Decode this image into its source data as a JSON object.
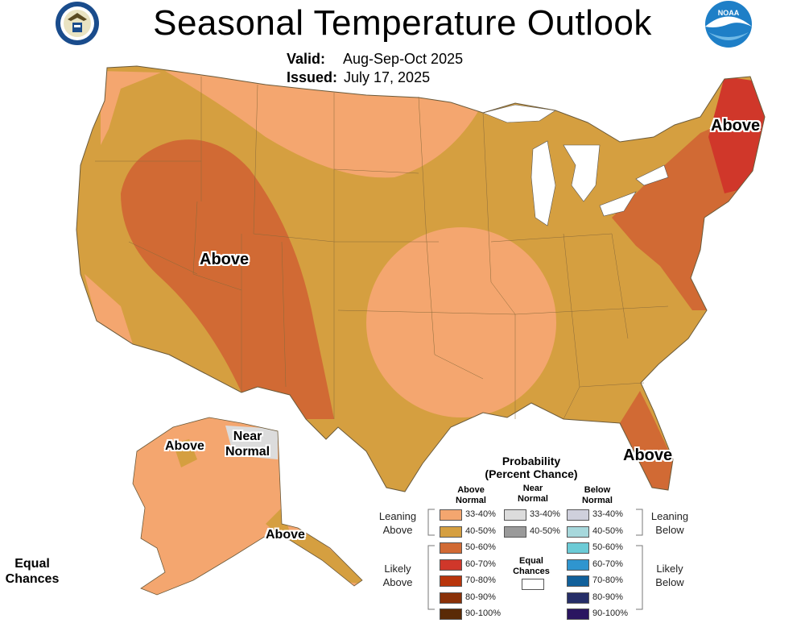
{
  "title": "Seasonal Temperature Outlook",
  "valid_label": "Valid:",
  "valid_value": "Aug-Sep-Oct 2025",
  "issued_label": "Issued:",
  "issued_value": "July 17, 2025",
  "logos": {
    "left": "doc-seal-icon",
    "right": "noaa-logo-icon",
    "noaa_text": "NOAA"
  },
  "colors": {
    "above_33_40": "#f4a66f",
    "above_40_50": "#d59f40",
    "above_50_60": "#d16a34",
    "above_60_70": "#d0372a",
    "near_normal": "#dcdcdc",
    "equal_chances": "#ffffff"
  },
  "map_labels": {
    "west_above": "Above",
    "northeast_above": "Above",
    "florida_above": "Above",
    "alaska_west_above": "Above",
    "alaska_south_above": "Above",
    "alaska_near_normal_line1": "Near",
    "alaska_near_normal_line2": "Normal",
    "equal_chances_line1": "Equal",
    "equal_chances_line2": "Chances"
  },
  "legend": {
    "title_line1": "Probability",
    "title_line2": "(Percent Chance)",
    "col_above_1": "Above",
    "col_above_2": "Normal",
    "col_near_1": "Near",
    "col_near_2": "Normal",
    "col_below_1": "Below",
    "col_below_2": "Normal",
    "leaning_above_1": "Leaning",
    "leaning_above_2": "Above",
    "likely_above_1": "Likely",
    "likely_above_2": "Above",
    "leaning_below_1": "Leaning",
    "leaning_below_2": "Below",
    "likely_below_1": "Likely",
    "likely_below_2": "Below",
    "equal_1": "Equal",
    "equal_2": "Chances",
    "above_rows": [
      {
        "label": "33-40%",
        "color": "#f4a66f"
      },
      {
        "label": "40-50%",
        "color": "#d59f40"
      },
      {
        "label": "50-60%",
        "color": "#d16a34"
      },
      {
        "label": "60-70%",
        "color": "#d0372a"
      },
      {
        "label": "70-80%",
        "color": "#b8350c"
      },
      {
        "label": "80-90%",
        "color": "#8a3108"
      },
      {
        "label": "90-100%",
        "color": "#5a2a06"
      }
    ],
    "near_rows": [
      {
        "label": "33-40%",
        "color": "#dcdcdc"
      },
      {
        "label": "40-50%",
        "color": "#9a9a9a"
      }
    ],
    "below_rows": [
      {
        "label": "33-40%",
        "color": "#cfd0dc"
      },
      {
        "label": "40-50%",
        "color": "#a7d8dc"
      },
      {
        "label": "50-60%",
        "color": "#6ccbd6"
      },
      {
        "label": "60-70%",
        "color": "#2f95cf"
      },
      {
        "label": "70-80%",
        "color": "#11609a"
      },
      {
        "label": "80-90%",
        "color": "#262e68"
      },
      {
        "label": "90-100%",
        "color": "#2a1560"
      }
    ]
  }
}
